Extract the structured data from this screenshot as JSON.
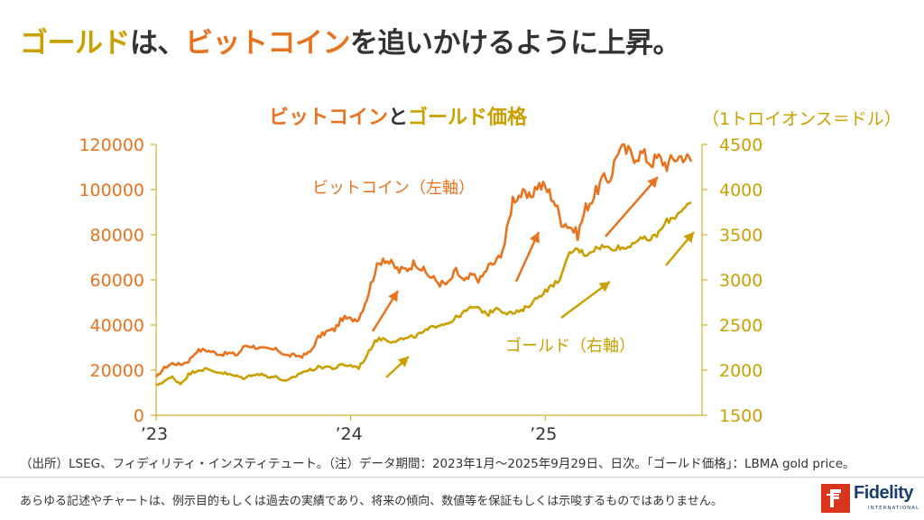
{
  "headline": {
    "part1": "ゴールド",
    "part2": "は、",
    "part3": "ビットコイン",
    "part4": "を追いかけるように上昇。"
  },
  "colors": {
    "bitcoin": "#e8731e",
    "gold": "#c9a000",
    "text": "#333333",
    "brand_red": "#d9341c",
    "brand_navy": "#1b3d6d"
  },
  "chart_data": {
    "type": "line",
    "title_parts": [
      "ビットコイン",
      "と",
      "ゴールド価格"
    ],
    "unit_label": "（1トロイオンス＝ドル）",
    "x_ticks": [
      "’23",
      "’24",
      "’25"
    ],
    "x_range": [
      "2023-01",
      "2025-09-29"
    ],
    "left_axis": {
      "ylim": [
        0,
        120000
      ],
      "ticks": [
        "0",
        "20000",
        "40000",
        "60000",
        "80000",
        "100000",
        "120000"
      ]
    },
    "right_axis": {
      "ylim": [
        1500,
        4500
      ],
      "ticks": [
        "1500",
        "2000",
        "2500",
        "3000",
        "3500",
        "4000",
        "4500"
      ]
    },
    "series": [
      {
        "name": "ビットコイン（左軸）",
        "axis": "left",
        "months": [
          0,
          0.5,
          1,
          1.5,
          2,
          2.5,
          3,
          3.5,
          4,
          4.5,
          5,
          5.5,
          6,
          6.5,
          7,
          7.5,
          8,
          8.5,
          9,
          9.5,
          10,
          10.5,
          11,
          11.5,
          12,
          12.5,
          13,
          13.5,
          14,
          14.5,
          15,
          15.5,
          16,
          16.5,
          17,
          17.5,
          18,
          18.5,
          19,
          19.5,
          20,
          20.5,
          21,
          21.5,
          22,
          22.5,
          23,
          23.5,
          24,
          24.5,
          25,
          25.5,
          26,
          26.5,
          27,
          27.5,
          28,
          28.5,
          29,
          29.5,
          30,
          30.5,
          31,
          31.5,
          32,
          32.5,
          33.0
        ],
        "values": [
          16600,
          21000,
          23000,
          22500,
          24000,
          28500,
          29000,
          28000,
          27000,
          27500,
          26800,
          31000,
          30500,
          29500,
          29200,
          29000,
          26500,
          26500,
          26200,
          28000,
          34500,
          37000,
          38000,
          43000,
          42500,
          43000,
          52000,
          64000,
          70000,
          67000,
          64000,
          65000,
          68000,
          64000,
          61000,
          58500,
          58000,
          64000,
          59000,
          62000,
          60000,
          66000,
          68000,
          76000,
          96000,
          98000,
          96000,
          102000,
          101000,
          96000,
          86000,
          84000,
          80000,
          92000,
          97000,
          104000,
          105000,
          118000,
          117000,
          115000,
          116000,
          112000,
          114000,
          111000,
          114000,
          115000,
          112500
        ]
      },
      {
        "name": "ゴールド（右軸）",
        "axis": "right",
        "months": [
          0,
          0.5,
          1,
          1.5,
          2,
          2.5,
          3,
          3.5,
          4,
          4.5,
          5,
          5.5,
          6,
          6.5,
          7,
          7.5,
          8,
          8.5,
          9,
          9.5,
          10,
          10.5,
          11,
          11.5,
          12,
          12.5,
          13,
          13.5,
          14,
          14.5,
          15,
          15.5,
          16,
          16.5,
          17,
          17.5,
          18,
          18.5,
          19,
          19.5,
          20,
          20.5,
          21,
          21.5,
          22,
          22.5,
          23,
          23.5,
          24,
          24.5,
          25,
          25.5,
          26,
          26.5,
          27,
          27.5,
          28,
          28.5,
          29,
          29.5,
          30,
          30.5,
          31,
          31.5,
          32,
          32.5,
          33.0
        ],
        "values": [
          1830,
          1880,
          1920,
          1850,
          1950,
          2000,
          2010,
          1990,
          1975,
          1950,
          1930,
          1910,
          1960,
          1950,
          1930,
          1920,
          1870,
          1920,
          1980,
          2000,
          2030,
          2040,
          2020,
          2060,
          2050,
          2030,
          2160,
          2330,
          2350,
          2320,
          2340,
          2350,
          2380,
          2420,
          2470,
          2510,
          2520,
          2580,
          2640,
          2700,
          2670,
          2620,
          2700,
          2640,
          2630,
          2650,
          2720,
          2800,
          2880,
          2940,
          3040,
          3300,
          3340,
          3280,
          3340,
          3370,
          3350,
          3360,
          3350,
          3430,
          3450,
          3450,
          3520,
          3650,
          3700,
          3800,
          3850
        ]
      }
    ],
    "annotations": {
      "bitcoin_label": "ビットコイン（左軸）",
      "gold_label": "ゴールド（右軸）"
    }
  },
  "footer": {
    "source": "（出所）LSEG、フィディリティ・インスティテュート。（注）データ期間：2023年1月～2025年9月29日、日次。「ゴールド価格」：LBMA gold price。",
    "disclaimer": "あらゆる記述やチャートは、例示目的もしくは過去の実績であり、将来の傾向、数値等を保証もしくは示唆するものではありません。"
  },
  "logo": {
    "name": "Fidelity",
    "sub": "INTERNATIONAL"
  }
}
